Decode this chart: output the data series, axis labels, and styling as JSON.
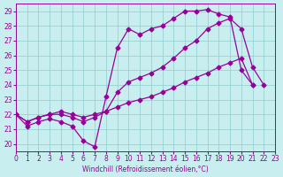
{
  "xlabel": "Windchill (Refroidissement éolien,°C)",
  "xlim": [
    0,
    23
  ],
  "ylim": [
    19.5,
    29.5
  ],
  "yticks": [
    20,
    21,
    22,
    23,
    24,
    25,
    26,
    27,
    28,
    29
  ],
  "xticks": [
    0,
    1,
    2,
    3,
    4,
    5,
    6,
    7,
    8,
    9,
    10,
    11,
    12,
    13,
    14,
    15,
    16,
    17,
    18,
    19,
    20,
    21,
    22,
    23
  ],
  "bg_color": "#c8eef0",
  "line_color": "#990099",
  "grid_color": "#8ecece",
  "line1": {
    "x": [
      0,
      1,
      2,
      3,
      4,
      5,
      6,
      7,
      8,
      9,
      10,
      11,
      12,
      13,
      14,
      15,
      16,
      17,
      18,
      19,
      20,
      21
    ],
    "y": [
      22,
      21.2,
      21.5,
      21.7,
      21.5,
      21.2,
      20.2,
      19.8,
      23.2,
      26.5,
      27.8,
      27.4,
      27.8,
      28.0,
      28.5,
      29.0,
      29.0,
      29.1,
      28.8,
      28.6,
      25.0,
      24.0
    ]
  },
  "line2": {
    "x": [
      0,
      1,
      2,
      3,
      4,
      5,
      6,
      7,
      8,
      9,
      10,
      11,
      12,
      13,
      14,
      15,
      16,
      17,
      18,
      19,
      20,
      21,
      22
    ],
    "y": [
      22,
      21.5,
      21.8,
      22.0,
      22.0,
      21.8,
      21.5,
      21.8,
      22.2,
      23.5,
      24.2,
      24.5,
      24.8,
      25.2,
      25.8,
      26.5,
      27.0,
      27.8,
      28.2,
      28.5,
      27.8,
      25.2,
      24.0
    ]
  },
  "line3": {
    "x": [
      0,
      1,
      2,
      3,
      4,
      5,
      6,
      7,
      8,
      9,
      10,
      11,
      12,
      13,
      14,
      15,
      16,
      17,
      18,
      19,
      20,
      21
    ],
    "y": [
      22,
      21.5,
      21.8,
      22.0,
      22.2,
      22.0,
      21.8,
      22.0,
      22.2,
      22.5,
      22.8,
      23.0,
      23.2,
      23.5,
      23.8,
      24.2,
      24.5,
      24.8,
      25.2,
      25.5,
      25.8,
      24.0
    ]
  }
}
